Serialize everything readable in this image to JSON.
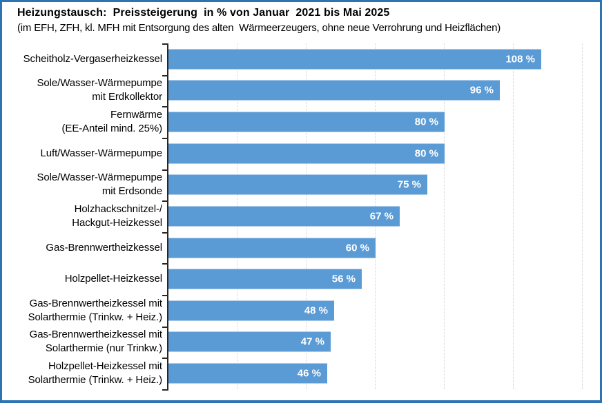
{
  "frame": {
    "border_color": "#2E74B5",
    "background": "#FFFFFF"
  },
  "chart_data": {
    "type": "bar",
    "orientation": "horizontal",
    "title": "Heizungstausch:  Preissteigerung  in % von Januar  2021 bis Mai 2025",
    "subtitle": "(im EFH, ZFH, kl. MFH mit Entsorgung des alten  Wärmeerzeugers, ohne neue Verrohrung und Heizflächen)",
    "categories": [
      [
        "Scheitholz-Vergaserheizkessel"
      ],
      [
        "Sole/Wasser-Wärmepumpe",
        "mit Erdkollektor"
      ],
      [
        "Fernwärme",
        "(EE-Anteil mind. 25%)"
      ],
      [
        "Luft/Wasser-Wärmepumpe"
      ],
      [
        "Sole/Wasser-Wärmepumpe",
        "mit Erdsonde"
      ],
      [
        "Holzhackschnitzel-/",
        "Hackgut-Heizkessel"
      ],
      [
        "Gas-Brennwertheizkessel"
      ],
      [
        "Holzpellet-Heizkessel"
      ],
      [
        "Gas-Brennwertheizkessel mit",
        "Solarthermie (Trinkw. + Heiz.)"
      ],
      [
        "Gas-Brennwertheizkessel mit",
        "Solarthermie (nur Trinkw.)"
      ],
      [
        "Holzpellet-Heizkessel mit",
        "Solarthermie (Trinkw. + Heiz.)"
      ]
    ],
    "values": [
      108,
      96,
      80,
      80,
      75,
      67,
      60,
      56,
      48,
      47,
      46
    ],
    "value_labels": [
      "108 %",
      "96 %",
      "80 %",
      "80 %",
      "75 %",
      "67 %",
      "60 %",
      "56 %",
      "48 %",
      "47 %",
      "46 %"
    ],
    "unit": "%",
    "xlabel": "",
    "ylabel": "",
    "xlim": [
      0,
      120
    ],
    "gridline_values": [
      20,
      40,
      60,
      80,
      100,
      120
    ],
    "grid": "vertical-dashed",
    "x_axis_tick_labels_visible": false,
    "legend": "none",
    "bar_color": "#5B9BD5",
    "value_label_color": "#FFFFFF",
    "axis_color": "#262626",
    "gridline_color": "#D9D9D9"
  }
}
